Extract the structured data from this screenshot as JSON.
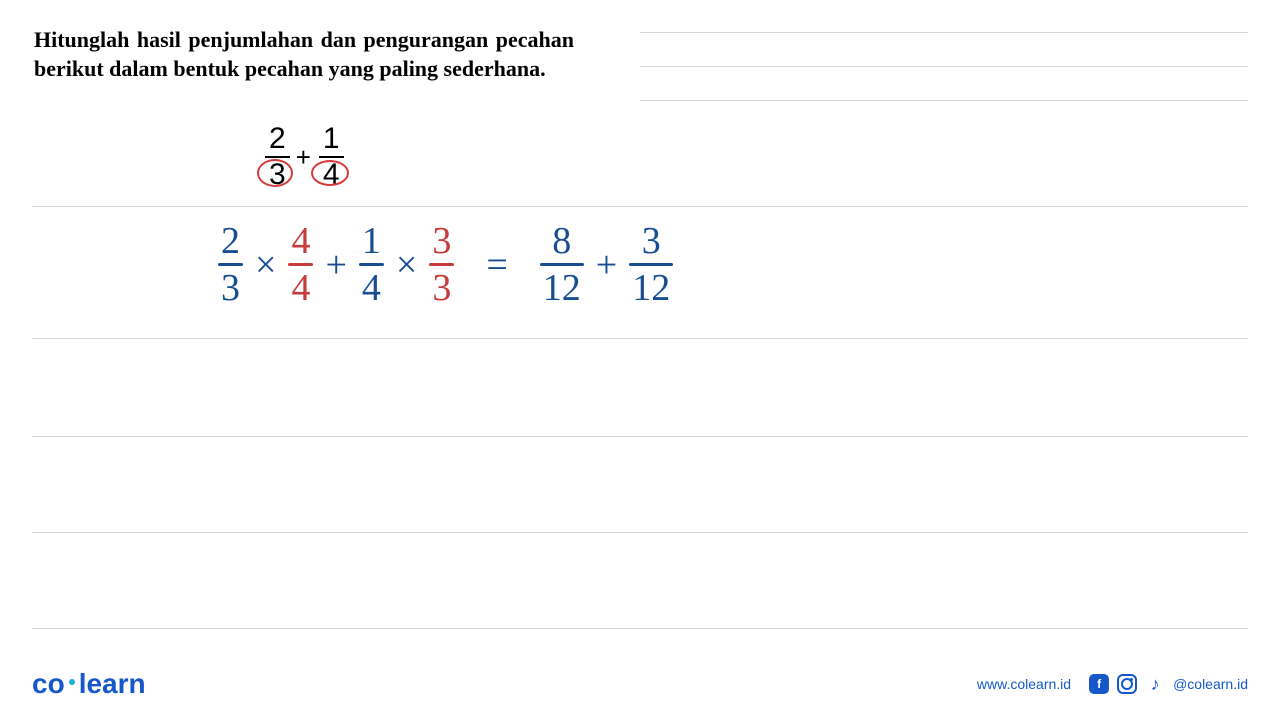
{
  "problem": {
    "text": "Hitunglah hasil penjumlahan dan pengurangan pecahan berikut dalam bentuk pecahan yang paling sederhana.",
    "text_color": "#000000",
    "fontsize": 22
  },
  "printed_expression": {
    "type": "fraction_sum",
    "f1": {
      "num": "2",
      "den": "3"
    },
    "op": "+",
    "f2": {
      "num": "1",
      "den": "4"
    },
    "text_color": "#000000",
    "fontsize": 30,
    "circle_color": "#d83a3a"
  },
  "work_row": {
    "ink_main": "#184d91",
    "ink_accent": "#c63b3b",
    "fontsize": 38,
    "terms": [
      {
        "type": "fraction",
        "num": "2",
        "den": "3",
        "num_color": "#184d91",
        "den_color": "#184d91",
        "bar_color": "#184d91"
      },
      {
        "type": "op",
        "text": "×",
        "color": "#184d91"
      },
      {
        "type": "fraction",
        "num": "4",
        "den": "4",
        "num_color": "#c63b3b",
        "den_color": "#c63b3b",
        "bar_color": "#c63b3b"
      },
      {
        "type": "op",
        "text": "+",
        "color": "#184d91"
      },
      {
        "type": "fraction",
        "num": "1",
        "den": "4",
        "num_color": "#184d91",
        "den_color": "#184d91",
        "bar_color": "#184d91"
      },
      {
        "type": "op",
        "text": "×",
        "color": "#184d91"
      },
      {
        "type": "fraction",
        "num": "3",
        "den": "3",
        "num_color": "#c63b3b",
        "den_color": "#c63b3b",
        "bar_color": "#c63b3b"
      },
      {
        "type": "op",
        "text": "=",
        "color": "#184d91",
        "wide": true
      },
      {
        "type": "fraction",
        "num": "8",
        "den": "12",
        "num_color": "#184d91",
        "den_color": "#184d91",
        "bar_color": "#184d91"
      },
      {
        "type": "op",
        "text": "+",
        "color": "#184d91"
      },
      {
        "type": "fraction",
        "num": "3",
        "den": "12",
        "num_color": "#184d91",
        "den_color": "#184d91",
        "bar_color": "#184d91"
      }
    ]
  },
  "ruled_lines": {
    "y_positions": [
      206,
      338,
      436,
      532,
      628
    ],
    "right_column_y": [
      32,
      66,
      100
    ],
    "color": "#d6d6d9"
  },
  "footer": {
    "logo_co": "co",
    "logo_learn": "learn",
    "logo_color": "#1657c9",
    "dot_color": "#1fb0d6",
    "url": "www.colearn.id",
    "handle": "@colearn.id",
    "accent_color": "#1657c9"
  }
}
